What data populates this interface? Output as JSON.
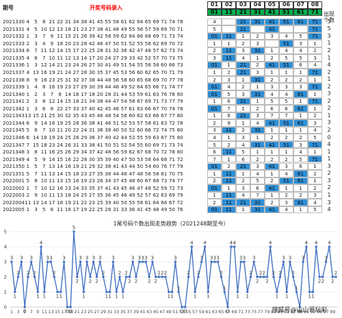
{
  "sheet": {
    "header": {
      "period_label": "期号",
      "entry_label": "开奖号码录入",
      "count_label": "出现个数"
    },
    "cols": [
      "01",
      "02",
      "03",
      "04",
      "05",
      "06",
      "07",
      "08"
    ],
    "cols_sub": [
      "01",
      "11",
      "21",
      "31",
      "41",
      "51",
      "61",
      "71"
    ],
    "rows": [
      {
        "period": "2021330",
        "nums": [
          "4",
          "5",
          "8",
          "21",
          "22",
          "31",
          "34",
          "38",
          "41",
          "45",
          "55",
          "58",
          "61",
          "62",
          "64",
          "65",
          "69",
          "71",
          "74",
          "78"
        ],
        "marks": [
          "4",
          "",
          "21",
          "31",
          "41",
          "51",
          "61",
          "71"
        ],
        "count": "5"
      },
      {
        "period": "2021331",
        "nums": [
          "4",
          "5",
          "10",
          "12",
          "13",
          "18",
          "21",
          "23",
          "27",
          "38",
          "41",
          "48",
          "49",
          "55",
          "56",
          "57",
          "59",
          "69",
          "70",
          "71"
        ],
        "marks": [
          "5",
          "",
          "21",
          "",
          "41",
          "",
          "",
          "71"
        ],
        "count": "5"
      },
      {
        "period": "2021332",
        "nums": [
          "1",
          "3",
          "7",
          "9",
          "11",
          "15",
          "21",
          "26",
          "39",
          "42",
          "58",
          "59",
          "62",
          "64",
          "66",
          "68",
          "69",
          "71",
          "73",
          "74"
        ],
        "marks": [
          "01",
          "11",
          "1",
          "2",
          "3",
          "4",
          "5",
          "71"
        ],
        "count": "3"
      },
      {
        "period": "2021333",
        "nums": [
          "2",
          "3",
          "4",
          "9",
          "18",
          "20",
          "23",
          "28",
          "42",
          "46",
          "47",
          "50",
          "51",
          "52",
          "55",
          "56",
          "62",
          "69",
          "70",
          "72"
        ],
        "marks": [
          "1",
          "1",
          "2",
          "3",
          "",
          "51",
          "3",
          "1"
        ],
        "count": "1"
      },
      {
        "period": "2021334",
        "nums": [
          "6",
          "7",
          "11",
          "12",
          "14",
          "15",
          "17",
          "22",
          "25",
          "28",
          "31",
          "32",
          "36",
          "42",
          "47",
          "48",
          "57",
          "62",
          "73",
          "74"
        ],
        "marks": [
          "2",
          "11",
          "3",
          "31",
          "1",
          "4",
          "4",
          "2"
        ],
        "count": "2"
      },
      {
        "period": "2021335",
        "nums": [
          "4",
          "6",
          "7",
          "10",
          "11",
          "12",
          "13",
          "14",
          "17",
          "20",
          "24",
          "27",
          "29",
          "33",
          "42",
          "52",
          "57",
          "70",
          "73",
          "75"
        ],
        "marks": [
          "3",
          "11",
          "4",
          "1",
          "2",
          "5",
          "5",
          "3"
        ],
        "count": "1"
      },
      {
        "period": "2021336",
        "nums": [
          "1",
          "3",
          "12",
          "14",
          "21",
          "23",
          "24",
          "26",
          "27",
          "30",
          "41",
          "49",
          "51",
          "54",
          "55",
          "56",
          "58",
          "60",
          "66",
          "73"
        ],
        "marks": [
          "01",
          "1",
          "21",
          "2",
          "41",
          "51",
          "6",
          "4"
        ],
        "count": "4"
      },
      {
        "period": "2021337",
        "nums": [
          "4",
          "13",
          "16",
          "19",
          "21",
          "24",
          "27",
          "28",
          "30",
          "35",
          "37",
          "45",
          "53",
          "56",
          "60",
          "62",
          "65",
          "70",
          "71",
          "79"
        ],
        "marks": [
          "1",
          "2",
          "21",
          "3",
          "1",
          "1",
          "1",
          "71"
        ],
        "count": "2"
      },
      {
        "period": "2021338",
        "nums": [
          "8",
          "9",
          "16",
          "23",
          "25",
          "31",
          "32",
          "37",
          "38",
          "44",
          "48",
          "56",
          "58",
          "60",
          "65",
          "68",
          "69",
          "70",
          "77",
          "78"
        ],
        "marks": [
          "2",
          "3",
          "1",
          "31",
          "2",
          "2",
          "2",
          "1"
        ],
        "count": "1"
      },
      {
        "period": "2021339",
        "nums": [
          "1",
          "4",
          "8",
          "16",
          "19",
          "23",
          "27",
          "29",
          "30",
          "39",
          "44",
          "46",
          "49",
          "52",
          "64",
          "65",
          "66",
          "71",
          "74",
          "77"
        ],
        "marks": [
          "01",
          "4",
          "2",
          "1",
          "3",
          "3",
          "3",
          "71"
        ],
        "count": "2"
      },
      {
        "period": "2021340",
        "nums": [
          "1",
          "2",
          "3",
          "7",
          "8",
          "14",
          "16",
          "17",
          "18",
          "20",
          "28",
          "31",
          "44",
          "53",
          "59",
          "61",
          "63",
          "76",
          "78",
          "80"
        ],
        "marks": [
          "01",
          "5",
          "3",
          "31",
          "4",
          "4",
          "61",
          "1"
        ],
        "count": "3"
      },
      {
        "period": "2021341",
        "nums": [
          "2",
          "3",
          "8",
          "12",
          "14",
          "15",
          "18",
          "21",
          "34",
          "38",
          "44",
          "47",
          "54",
          "58",
          "67",
          "69",
          "71",
          "73",
          "77",
          "79"
        ],
        "marks": [
          "1",
          "6",
          "21",
          "1",
          "5",
          "5",
          "1",
          "71"
        ],
        "count": "2"
      },
      {
        "period": "2021342",
        "nums": [
          "1",
          "3",
          "6",
          "8",
          "22",
          "27",
          "33",
          "37",
          "40",
          "42",
          "45",
          "46",
          "57",
          "61",
          "63",
          "66",
          "67",
          "70",
          "74",
          "78"
        ],
        "marks": [
          "01",
          "7",
          "1",
          "2",
          "6",
          "6",
          "61",
          "1"
        ],
        "count": "2"
      },
      {
        "period": "2021343",
        "nums": [
          "13",
          "15",
          "21",
          "25",
          "30",
          "32",
          "35",
          "43",
          "45",
          "46",
          "48",
          "54",
          "56",
          "60",
          "62",
          "63",
          "66",
          "67",
          "77",
          "80"
        ],
        "marks": [
          "1",
          "8",
          "21",
          "3",
          "7",
          "7",
          "1",
          "2"
        ],
        "count": "1"
      },
      {
        "period": "2021344",
        "nums": [
          "6",
          "9",
          "14",
          "16",
          "19",
          "25",
          "28",
          "36",
          "38",
          "41",
          "46",
          "51",
          "52",
          "53",
          "57",
          "58",
          "61",
          "63",
          "72",
          "78"
        ],
        "marks": [
          "2",
          "9",
          "1",
          "4",
          "41",
          "51",
          "61",
          "3"
        ],
        "count": "3"
      },
      {
        "period": "2021345",
        "nums": [
          "5",
          "6",
          "7",
          "10",
          "11",
          "20",
          "22",
          "24",
          "31",
          "36",
          "38",
          "40",
          "50",
          "52",
          "60",
          "66",
          "72",
          "74",
          "75",
          "80"
        ],
        "marks": [
          "3",
          "11",
          "2",
          "31",
          "1",
          "1",
          "1",
          "4"
        ],
        "count": "2"
      },
      {
        "period": "2021346",
        "nums": [
          "6",
          "14",
          "18",
          "19",
          "24",
          "25",
          "28",
          "29",
          "36",
          "37",
          "40",
          "42",
          "44",
          "53",
          "55",
          "59",
          "63",
          "67",
          "75",
          "80"
        ],
        "marks": [
          "4",
          "1",
          "3",
          "1",
          "2",
          "2",
          "2",
          "5"
        ],
        "count": "0"
      },
      {
        "period": "2021347",
        "nums": [
          "7",
          "15",
          "18",
          "23",
          "24",
          "26",
          "31",
          "33",
          "38",
          "41",
          "50",
          "51",
          "52",
          "54",
          "55",
          "60",
          "69",
          "71",
          "73",
          "74"
        ],
        "marks": [
          "5",
          "2",
          "4",
          "31",
          "41",
          "51",
          "3",
          "71"
        ],
        "count": "4"
      },
      {
        "period": "2021348",
        "nums": [
          "3",
          "8",
          "11",
          "16",
          "25",
          "26",
          "29",
          "34",
          "37",
          "42",
          "48",
          "56",
          "59",
          "62",
          "67",
          "68",
          "70",
          "72",
          "78",
          "80"
        ],
        "marks": [
          "6",
          "11",
          "5",
          "1",
          "1",
          "1",
          "4",
          "1"
        ],
        "count": "1"
      },
      {
        "period": "2021349",
        "nums": [
          "4",
          "5",
          "9",
          "14",
          "15",
          "16",
          "22",
          "28",
          "30",
          "35",
          "39",
          "40",
          "47",
          "50",
          "53",
          "58",
          "64",
          "68",
          "71",
          "72"
        ],
        "marks": [
          "7",
          "1",
          "6",
          "2",
          "2",
          "2",
          "5",
          "71"
        ],
        "count": "1"
      },
      {
        "period": "2021350",
        "nums": [
          "1",
          "5",
          "7",
          "13",
          "14",
          "16",
          "19",
          "21",
          "29",
          "32",
          "38",
          "41",
          "43",
          "44",
          "50",
          "54",
          "60",
          "76",
          "77",
          "79"
        ],
        "marks": [
          "01",
          "2",
          "21",
          "3",
          "41",
          "3",
          "6",
          "1"
        ],
        "count": "3"
      },
      {
        "period": "2021351",
        "nums": [
          "5",
          "7",
          "11",
          "13",
          "14",
          "15",
          "18",
          "23",
          "27",
          "35",
          "38",
          "44",
          "46",
          "47",
          "48",
          "56",
          "58",
          "61",
          "70",
          "75"
        ],
        "marks": [
          "1",
          "11",
          "1",
          "4",
          "1",
          "4",
          "61",
          "2"
        ],
        "count": "2"
      },
      {
        "period": "2022001",
        "nums": [
          "5",
          "8",
          "10",
          "11",
          "13",
          "15",
          "16",
          "19",
          "23",
          "26",
          "34",
          "37",
          "45",
          "48",
          "60",
          "67",
          "68",
          "73",
          "74",
          "77"
        ],
        "marks": [
          "2",
          "11",
          "2",
          "5",
          "2",
          "51",
          "61",
          "1"
        ],
        "count": "3"
      },
      {
        "period": "2022002",
        "nums": [
          "1",
          "7",
          "10",
          "12",
          "16",
          "23",
          "24",
          "33",
          "35",
          "37",
          "41",
          "43",
          "45",
          "46",
          "47",
          "48",
          "52",
          "59",
          "72",
          "73"
        ],
        "marks": [
          "01",
          "1",
          "3",
          "6",
          "41",
          "1",
          "1",
          "2"
        ],
        "count": "2"
      },
      {
        "period": "2022003",
        "nums": [
          "2",
          "9",
          "10",
          "11",
          "13",
          "18",
          "24",
          "25",
          "27",
          "35",
          "36",
          "45",
          "46",
          "49",
          "52",
          "57",
          "62",
          "63",
          "69",
          "79"
        ],
        "marks": [
          "1",
          "11",
          "4",
          "7",
          "1",
          "2",
          "2",
          "3"
        ],
        "count": "1"
      },
      {
        "period": "2022004",
        "nums": [
          "11",
          "13",
          "14",
          "17",
          "18",
          "19",
          "21",
          "22",
          "23",
          "25",
          "39",
          "40",
          "50",
          "55",
          "58",
          "61",
          "64",
          "66",
          "67",
          "72"
        ],
        "marks": [
          "2",
          "11",
          "21",
          "31",
          "2",
          "3",
          "61",
          "4"
        ],
        "count": "3"
      },
      {
        "period": "2022005",
        "nums": [
          "1",
          "3",
          "5",
          "6",
          "11",
          "16",
          "17",
          "19",
          "22",
          "25",
          "28",
          "31",
          "33",
          "36",
          "41",
          "45",
          "48",
          "49",
          "50",
          "76"
        ],
        "marks": [
          "01",
          "11",
          "1",
          "31",
          "41",
          "4",
          "1",
          "5"
        ],
        "count": "4"
      }
    ]
  },
  "chart_data": {
    "type": "line",
    "title": "1尾号码个数出现走势趋势（2021248期至今）",
    "xlabel": "",
    "ylabel": "",
    "ylim": [
      0,
      5
    ],
    "yticks": [
      "0",
      "1",
      "2",
      "3",
      "4",
      "5"
    ],
    "xtick_labels": [
      "1",
      "3",
      "5",
      "7",
      "9",
      "11",
      "13",
      "15",
      "17",
      "19",
      "21",
      "23",
      "25",
      "27",
      "29",
      "31",
      "33",
      "35",
      "37",
      "39",
      "41",
      "43",
      "45",
      "47",
      "49",
      "51",
      "53",
      "55",
      "57",
      "59",
      "61",
      "63",
      "65",
      "67",
      "69",
      "71",
      "73",
      "75",
      "77",
      "79",
      "81",
      "83",
      "85",
      "87",
      "89",
      "91",
      "93",
      "95",
      "97",
      "99"
    ],
    "values": [
      3,
      1,
      2,
      3,
      0,
      2,
      3,
      2,
      1,
      4,
      1,
      3,
      3,
      2,
      1,
      1,
      3,
      0,
      0,
      5,
      2,
      3,
      1,
      3,
      2,
      3,
      2,
      3,
      2,
      1,
      1,
      3,
      1,
      2,
      1,
      2,
      2,
      3,
      2,
      3,
      3,
      3,
      2,
      3,
      2,
      2,
      2,
      2,
      1,
      1,
      3,
      1,
      0,
      0,
      2,
      4,
      1,
      2,
      3,
      4,
      1,
      3,
      3,
      3,
      2,
      1,
      0,
      4,
      4,
      1,
      3,
      3,
      1,
      2,
      3,
      2,
      2,
      2,
      2,
      4,
      2,
      1,
      2,
      3,
      1,
      3,
      2,
      1,
      0,
      3,
      4,
      1,
      1,
      4,
      2,
      2,
      3,
      4,
      2,
      2
    ],
    "color": "#4472c4",
    "grid": true
  },
  "colors": {
    "highlight": "#2f8fd6",
    "header_green": "#00b050",
    "entry_red": "#ff0000",
    "line": "#4472c4"
  },
  "watermark": "搜狐号@山山哥玩彩"
}
